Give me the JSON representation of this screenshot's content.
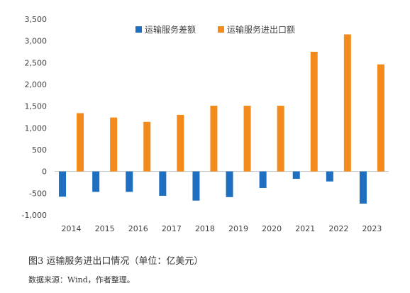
{
  "chart_data": {
    "type": "bar",
    "categories": [
      "2014",
      "2015",
      "2016",
      "2017",
      "2018",
      "2019",
      "2020",
      "2021",
      "2022",
      "2023"
    ],
    "series": [
      {
        "name": "运输服务差额",
        "color": "#1f6fc0",
        "values": [
          -580,
          -470,
          -470,
          -560,
          -670,
          -590,
          -380,
          -170,
          -230,
          -740
        ]
      },
      {
        "name": "运输服务进出口额",
        "color": "#f28a1c",
        "values": [
          1340,
          1240,
          1140,
          1300,
          1510,
          1510,
          1510,
          2750,
          3150,
          2460
        ]
      }
    ],
    "ylim": [
      -1000,
      3500
    ],
    "yticks": [
      -1000,
      -500,
      0,
      500,
      1000,
      1500,
      2000,
      2500,
      3000,
      3500
    ],
    "ytick_labels": [
      "-1,000",
      "-500",
      "0",
      "500",
      "1,000",
      "1,500",
      "2,000",
      "2,500",
      "3,000",
      "3,500"
    ],
    "grid": false,
    "legend_position": "top-center"
  },
  "caption": "图3  运输服务进出口情况（单位：亿美元）",
  "source": "数据来源：Wind，作者整理。"
}
